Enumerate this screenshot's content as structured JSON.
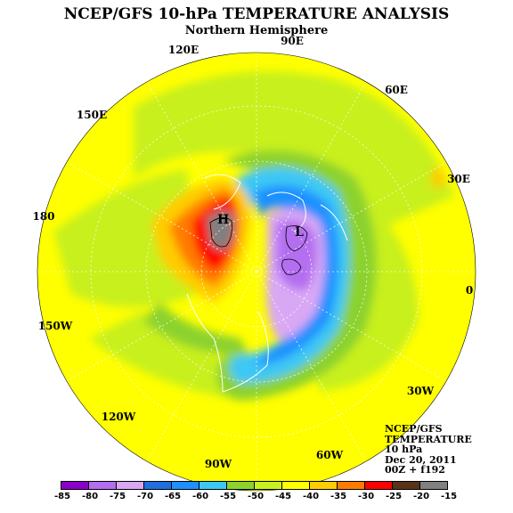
{
  "header": {
    "title": "NCEP/GFS 10-hPa TEMPERATURE ANALYSIS",
    "subtitle": "Northern Hemisphere"
  },
  "map": {
    "longitude_labels": [
      "90E",
      "60E",
      "30E",
      "0",
      "30W",
      "60W",
      "90W",
      "120W",
      "150W",
      "180",
      "150E",
      "120E"
    ],
    "centers": [
      {
        "label": "H",
        "meaning": "warm center"
      },
      {
        "label": "L",
        "meaning": "cold center"
      }
    ]
  },
  "info": {
    "lines": [
      "NCEP/GFS",
      "TEMPERATURE",
      "10 hPa",
      "Dec 20, 2011",
      "00Z + f192"
    ]
  },
  "colorbar": {
    "colors": [
      "#8b00c8",
      "#b46ef0",
      "#d9a8f5",
      "#1f6fe0",
      "#1e90ff",
      "#3cc8f5",
      "#8cd22d",
      "#c8f01e",
      "#ffff00",
      "#ffcc00",
      "#ff7b00",
      "#ff0000",
      "#5a3219",
      "#808080"
    ],
    "labels": [
      "-85",
      "-80",
      "-75",
      "-70",
      "-65",
      "-60",
      "-55",
      "-50",
      "-45",
      "-40",
      "-35",
      "-30",
      "-25",
      "-20",
      "-15"
    ]
  }
}
